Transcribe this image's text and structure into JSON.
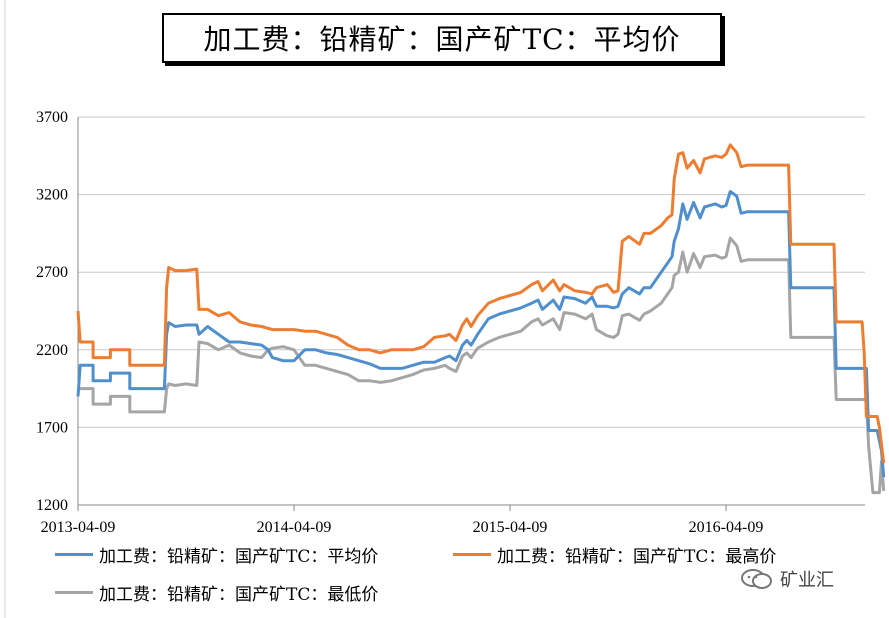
{
  "chart_data": {
    "type": "line",
    "title": "加工费：铅精矿：国产矿TC：平均价",
    "xlabel": "",
    "ylabel": "",
    "ylim": [
      1200,
      3700
    ],
    "yticks": [
      1200,
      1700,
      2200,
      2700,
      3200,
      3700
    ],
    "xticks": [
      {
        "label": "2013-04-09",
        "t": 0
      },
      {
        "label": "2014-04-09",
        "t": 1
      },
      {
        "label": "2015-04-09",
        "t": 2
      },
      {
        "label": "2016-04-09",
        "t": 3
      }
    ],
    "xlim": [
      0,
      3.65
    ],
    "grid": "horizontal",
    "legend_position": "bottom",
    "series": [
      {
        "name": "加工费：铅精矿：国产矿TC：平均价",
        "color": "#4f8fcd",
        "points": [
          [
            0.0,
            1900
          ],
          [
            0.01,
            2100
          ],
          [
            0.07,
            2100
          ],
          [
            0.07,
            2000
          ],
          [
            0.15,
            2000
          ],
          [
            0.15,
            2050
          ],
          [
            0.24,
            2050
          ],
          [
            0.24,
            1950
          ],
          [
            0.4,
            1950
          ],
          [
            0.41,
            2300
          ],
          [
            0.42,
            2375
          ],
          [
            0.45,
            2350
          ],
          [
            0.5,
            2360
          ],
          [
            0.55,
            2360
          ],
          [
            0.56,
            2300
          ],
          [
            0.6,
            2350
          ],
          [
            0.65,
            2300
          ],
          [
            0.7,
            2250
          ],
          [
            0.75,
            2250
          ],
          [
            0.8,
            2240
          ],
          [
            0.85,
            2230
          ],
          [
            0.88,
            2200
          ],
          [
            0.9,
            2150
          ],
          [
            0.95,
            2130
          ],
          [
            1.0,
            2130
          ],
          [
            1.05,
            2200
          ],
          [
            1.1,
            2200
          ],
          [
            1.15,
            2180
          ],
          [
            1.2,
            2170
          ],
          [
            1.25,
            2150
          ],
          [
            1.3,
            2130
          ],
          [
            1.35,
            2110
          ],
          [
            1.4,
            2080
          ],
          [
            1.45,
            2080
          ],
          [
            1.5,
            2080
          ],
          [
            1.55,
            2100
          ],
          [
            1.6,
            2120
          ],
          [
            1.65,
            2120
          ],
          [
            1.7,
            2150
          ],
          [
            1.72,
            2160
          ],
          [
            1.75,
            2130
          ],
          [
            1.78,
            2230
          ],
          [
            1.8,
            2260
          ],
          [
            1.82,
            2230
          ],
          [
            1.85,
            2300
          ],
          [
            1.9,
            2400
          ],
          [
            1.95,
            2430
          ],
          [
            2.0,
            2450
          ],
          [
            2.05,
            2470
          ],
          [
            2.1,
            2500
          ],
          [
            2.13,
            2520
          ],
          [
            2.15,
            2460
          ],
          [
            2.2,
            2520
          ],
          [
            2.23,
            2460
          ],
          [
            2.25,
            2540
          ],
          [
            2.3,
            2530
          ],
          [
            2.35,
            2500
          ],
          [
            2.38,
            2540
          ],
          [
            2.4,
            2480
          ],
          [
            2.45,
            2480
          ],
          [
            2.48,
            2470
          ],
          [
            2.5,
            2480
          ],
          [
            2.52,
            2560
          ],
          [
            2.55,
            2600
          ],
          [
            2.6,
            2560
          ],
          [
            2.62,
            2600
          ],
          [
            2.65,
            2600
          ],
          [
            2.7,
            2700
          ],
          [
            2.73,
            2760
          ],
          [
            2.75,
            2800
          ],
          [
            2.76,
            2900
          ],
          [
            2.78,
            2980
          ],
          [
            2.8,
            3140
          ],
          [
            2.82,
            3040
          ],
          [
            2.85,
            3150
          ],
          [
            2.88,
            3050
          ],
          [
            2.9,
            3120
          ],
          [
            2.95,
            3140
          ],
          [
            2.98,
            3120
          ],
          [
            3.0,
            3130
          ],
          [
            3.02,
            3220
          ],
          [
            3.05,
            3190
          ],
          [
            3.07,
            3080
          ],
          [
            3.1,
            3090
          ],
          [
            3.15,
            3090
          ],
          [
            3.2,
            3090
          ],
          [
            3.25,
            3090
          ],
          [
            3.29,
            3090
          ],
          [
            3.3,
            2600
          ],
          [
            3.35,
            2600
          ],
          [
            3.45,
            2600
          ],
          [
            3.5,
            2600
          ],
          [
            3.51,
            2080
          ],
          [
            3.55,
            2080
          ],
          [
            3.65,
            2080
          ],
          [
            3.66,
            1680
          ],
          [
            3.7,
            1680
          ],
          [
            3.72,
            1550
          ],
          [
            3.73,
            1380
          ]
        ]
      },
      {
        "name": "加工费：铅精矿：国产矿TC：最高价",
        "color": "#ed7d31",
        "points": [
          [
            0.0,
            2450
          ],
          [
            0.01,
            2250
          ],
          [
            0.07,
            2250
          ],
          [
            0.07,
            2150
          ],
          [
            0.15,
            2150
          ],
          [
            0.15,
            2200
          ],
          [
            0.24,
            2200
          ],
          [
            0.24,
            2100
          ],
          [
            0.4,
            2100
          ],
          [
            0.41,
            2600
          ],
          [
            0.42,
            2730
          ],
          [
            0.45,
            2710
          ],
          [
            0.5,
            2710
          ],
          [
            0.55,
            2720
          ],
          [
            0.56,
            2460
          ],
          [
            0.6,
            2460
          ],
          [
            0.65,
            2420
          ],
          [
            0.7,
            2440
          ],
          [
            0.75,
            2380
          ],
          [
            0.8,
            2360
          ],
          [
            0.85,
            2350
          ],
          [
            0.9,
            2330
          ],
          [
            0.95,
            2330
          ],
          [
            1.0,
            2330
          ],
          [
            1.05,
            2320
          ],
          [
            1.1,
            2320
          ],
          [
            1.15,
            2300
          ],
          [
            1.2,
            2280
          ],
          [
            1.25,
            2230
          ],
          [
            1.3,
            2200
          ],
          [
            1.35,
            2200
          ],
          [
            1.4,
            2180
          ],
          [
            1.45,
            2200
          ],
          [
            1.5,
            2200
          ],
          [
            1.55,
            2200
          ],
          [
            1.6,
            2220
          ],
          [
            1.65,
            2280
          ],
          [
            1.7,
            2290
          ],
          [
            1.72,
            2300
          ],
          [
            1.75,
            2260
          ],
          [
            1.78,
            2360
          ],
          [
            1.8,
            2400
          ],
          [
            1.82,
            2350
          ],
          [
            1.85,
            2420
          ],
          [
            1.9,
            2500
          ],
          [
            1.95,
            2530
          ],
          [
            2.0,
            2550
          ],
          [
            2.05,
            2570
          ],
          [
            2.1,
            2620
          ],
          [
            2.13,
            2640
          ],
          [
            2.15,
            2580
          ],
          [
            2.2,
            2650
          ],
          [
            2.23,
            2580
          ],
          [
            2.25,
            2620
          ],
          [
            2.3,
            2580
          ],
          [
            2.35,
            2570
          ],
          [
            2.38,
            2560
          ],
          [
            2.4,
            2600
          ],
          [
            2.45,
            2620
          ],
          [
            2.48,
            2570
          ],
          [
            2.5,
            2580
          ],
          [
            2.52,
            2900
          ],
          [
            2.55,
            2930
          ],
          [
            2.6,
            2880
          ],
          [
            2.62,
            2950
          ],
          [
            2.65,
            2950
          ],
          [
            2.7,
            3000
          ],
          [
            2.73,
            3050
          ],
          [
            2.75,
            3070
          ],
          [
            2.76,
            3300
          ],
          [
            2.78,
            3460
          ],
          [
            2.8,
            3470
          ],
          [
            2.82,
            3370
          ],
          [
            2.85,
            3420
          ],
          [
            2.88,
            3340
          ],
          [
            2.9,
            3430
          ],
          [
            2.95,
            3450
          ],
          [
            2.98,
            3440
          ],
          [
            3.0,
            3460
          ],
          [
            3.02,
            3520
          ],
          [
            3.05,
            3470
          ],
          [
            3.07,
            3380
          ],
          [
            3.1,
            3390
          ],
          [
            3.15,
            3390
          ],
          [
            3.2,
            3390
          ],
          [
            3.25,
            3390
          ],
          [
            3.29,
            3390
          ],
          [
            3.3,
            2880
          ],
          [
            3.35,
            2880
          ],
          [
            3.45,
            2880
          ],
          [
            3.5,
            2880
          ],
          [
            3.51,
            2380
          ],
          [
            3.55,
            2380
          ],
          [
            3.63,
            2380
          ],
          [
            3.64,
            2180
          ],
          [
            3.65,
            1770
          ],
          [
            3.7,
            1770
          ],
          [
            3.71,
            1700
          ],
          [
            3.73,
            1470
          ]
        ]
      },
      {
        "name": "加工费：铅精矿：国产矿TC：最低价",
        "color": "#a5a5a5",
        "points": [
          [
            0.0,
            1950
          ],
          [
            0.01,
            1950
          ],
          [
            0.07,
            1950
          ],
          [
            0.07,
            1850
          ],
          [
            0.15,
            1850
          ],
          [
            0.15,
            1900
          ],
          [
            0.24,
            1900
          ],
          [
            0.24,
            1800
          ],
          [
            0.4,
            1800
          ],
          [
            0.41,
            1950
          ],
          [
            0.42,
            1980
          ],
          [
            0.45,
            1970
          ],
          [
            0.5,
            1980
          ],
          [
            0.55,
            1970
          ],
          [
            0.56,
            2250
          ],
          [
            0.6,
            2240
          ],
          [
            0.65,
            2200
          ],
          [
            0.7,
            2230
          ],
          [
            0.75,
            2180
          ],
          [
            0.8,
            2160
          ],
          [
            0.85,
            2150
          ],
          [
            0.88,
            2200
          ],
          [
            0.9,
            2210
          ],
          [
            0.95,
            2220
          ],
          [
            1.0,
            2200
          ],
          [
            1.05,
            2100
          ],
          [
            1.1,
            2100
          ],
          [
            1.15,
            2080
          ],
          [
            1.2,
            2060
          ],
          [
            1.25,
            2040
          ],
          [
            1.3,
            2000
          ],
          [
            1.35,
            2000
          ],
          [
            1.4,
            1990
          ],
          [
            1.45,
            2000
          ],
          [
            1.5,
            2020
          ],
          [
            1.55,
            2040
          ],
          [
            1.6,
            2070
          ],
          [
            1.65,
            2080
          ],
          [
            1.7,
            2100
          ],
          [
            1.72,
            2080
          ],
          [
            1.75,
            2060
          ],
          [
            1.78,
            2160
          ],
          [
            1.8,
            2180
          ],
          [
            1.82,
            2150
          ],
          [
            1.85,
            2210
          ],
          [
            1.9,
            2250
          ],
          [
            1.95,
            2280
          ],
          [
            2.0,
            2300
          ],
          [
            2.05,
            2320
          ],
          [
            2.1,
            2380
          ],
          [
            2.13,
            2400
          ],
          [
            2.15,
            2360
          ],
          [
            2.2,
            2400
          ],
          [
            2.23,
            2330
          ],
          [
            2.25,
            2440
          ],
          [
            2.3,
            2430
          ],
          [
            2.35,
            2400
          ],
          [
            2.38,
            2430
          ],
          [
            2.4,
            2330
          ],
          [
            2.45,
            2290
          ],
          [
            2.48,
            2280
          ],
          [
            2.5,
            2300
          ],
          [
            2.52,
            2420
          ],
          [
            2.55,
            2430
          ],
          [
            2.6,
            2390
          ],
          [
            2.62,
            2430
          ],
          [
            2.65,
            2450
          ],
          [
            2.7,
            2500
          ],
          [
            2.73,
            2560
          ],
          [
            2.75,
            2600
          ],
          [
            2.76,
            2680
          ],
          [
            2.78,
            2700
          ],
          [
            2.8,
            2830
          ],
          [
            2.82,
            2700
          ],
          [
            2.85,
            2820
          ],
          [
            2.88,
            2730
          ],
          [
            2.9,
            2800
          ],
          [
            2.95,
            2810
          ],
          [
            2.98,
            2790
          ],
          [
            3.0,
            2800
          ],
          [
            3.02,
            2920
          ],
          [
            3.05,
            2870
          ],
          [
            3.07,
            2770
          ],
          [
            3.1,
            2780
          ],
          [
            3.15,
            2780
          ],
          [
            3.2,
            2780
          ],
          [
            3.25,
            2780
          ],
          [
            3.29,
            2780
          ],
          [
            3.3,
            2280
          ],
          [
            3.35,
            2280
          ],
          [
            3.45,
            2280
          ],
          [
            3.5,
            2280
          ],
          [
            3.51,
            1880
          ],
          [
            3.55,
            1880
          ],
          [
            3.65,
            1880
          ],
          [
            3.66,
            1580
          ],
          [
            3.68,
            1280
          ],
          [
            3.71,
            1280
          ],
          [
            3.72,
            1480
          ],
          [
            3.73,
            1290
          ]
        ]
      }
    ]
  },
  "watermark": {
    "text": "矿业汇"
  }
}
